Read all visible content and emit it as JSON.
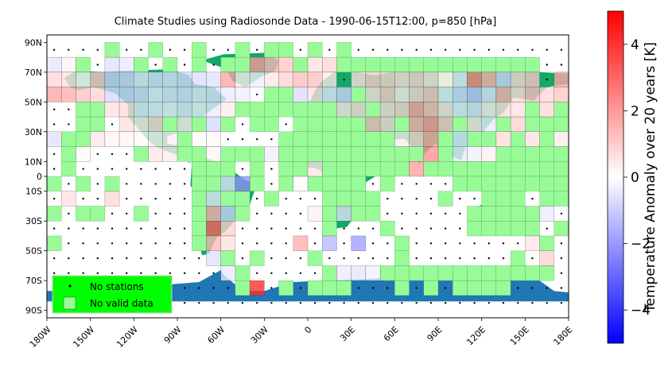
{
  "chart_data": {
    "type": "heatmap",
    "title": "Climate Studies using Radiosonde Data - 1990-06-15T12:00, p=850 [hPa]",
    "x_axis": {
      "range": [
        -180,
        180
      ],
      "ticks": [
        -180,
        -150,
        -120,
        -90,
        -60,
        -30,
        0,
        30,
        60,
        90,
        120,
        150,
        180
      ],
      "tick_labels": [
        "180W",
        "150W",
        "120W",
        "90W",
        "60W",
        "30W",
        "0",
        "30E",
        "60E",
        "90E",
        "120E",
        "150E",
        "180E"
      ]
    },
    "y_axis": {
      "range": [
        -95,
        95
      ],
      "ticks": [
        90,
        70,
        50,
        30,
        10,
        0,
        -10,
        -30,
        -50,
        -70,
        -90
      ],
      "tick_labels": [
        "90N",
        "70N",
        "50N",
        "30N",
        "10N",
        "0",
        "10S",
        "30S",
        "50S",
        "70S",
        "90S"
      ]
    },
    "colorbar": {
      "label": "Temperature Anomaly over 20 years [K]",
      "range": [
        -5,
        5
      ],
      "ticks": [
        -4,
        -2,
        0,
        2,
        4
      ],
      "tick_labels": [
        "−4",
        "−2",
        "0",
        "2",
        "4"
      ],
      "colormap": "bwr"
    },
    "legend": {
      "position": "lower-left",
      "entries": [
        {
          "label": "No stations",
          "marker": "dot"
        },
        {
          "label": "No valid data",
          "marker": "green-square"
        }
      ]
    },
    "grid_cell_deg": 10,
    "anomaly_cells": [
      [
        -175,
        75,
        -0.5
      ],
      [
        -165,
        75,
        0.2
      ],
      [
        -135,
        75,
        -0.6
      ],
      [
        -125,
        75,
        -0.4
      ],
      [
        -175,
        65,
        0.8
      ],
      [
        -165,
        65,
        0.6
      ],
      [
        -155,
        65,
        0.1
      ],
      [
        -145,
        65,
        1.2
      ],
      [
        -135,
        65,
        -1.0
      ],
      [
        -125,
        65,
        -0.9
      ],
      [
        -115,
        65,
        -0.5
      ],
      [
        -105,
        65,
        -0.7
      ],
      [
        -95,
        65,
        -0.6
      ],
      [
        -85,
        65,
        -0.8
      ],
      [
        -75,
        65,
        -0.7
      ],
      [
        -65,
        65,
        -0.6
      ],
      [
        -55,
        65,
        1.8
      ],
      [
        -45,
        65,
        0.3
      ],
      [
        -35,
        65,
        -0.3
      ],
      [
        -25,
        65,
        0.5
      ],
      [
        -175,
        55,
        1.8
      ],
      [
        -165,
        55,
        1.6
      ],
      [
        -155,
        55,
        1.2
      ],
      [
        -145,
        55,
        0.9
      ],
      [
        -135,
        55,
        -0.8
      ],
      [
        -125,
        55,
        -0.9
      ],
      [
        -115,
        55,
        -0.8
      ],
      [
        -105,
        55,
        -0.4
      ],
      [
        -95,
        55,
        -0.6
      ],
      [
        -85,
        55,
        -0.7
      ],
      [
        -75,
        55,
        -0.5
      ],
      [
        -65,
        55,
        -0.6
      ],
      [
        -55,
        55,
        -0.4
      ],
      [
        -45,
        55,
        -0.3
      ],
      [
        -135,
        45,
        0.6
      ],
      [
        -125,
        45,
        0.7
      ],
      [
        -115,
        45,
        -0.5
      ],
      [
        -105,
        45,
        -0.4
      ],
      [
        -95,
        45,
        -0.3
      ],
      [
        -85,
        45,
        -0.5
      ],
      [
        -75,
        45,
        -0.3
      ],
      [
        -65,
        45,
        -0.4
      ],
      [
        -55,
        45,
        0.4
      ],
      [
        -125,
        35,
        0.6
      ],
      [
        -115,
        35,
        0.4
      ],
      [
        -105,
        35,
        0.8
      ],
      [
        -85,
        35,
        0.3
      ],
      [
        -65,
        35,
        -0.8
      ],
      [
        -175,
        25,
        -0.6
      ],
      [
        -145,
        25,
        0.5
      ],
      [
        -135,
        25,
        0.2
      ],
      [
        -125,
        25,
        0.2
      ],
      [
        -115,
        25,
        0.1
      ],
      [
        -105,
        25,
        0.2
      ],
      [
        -95,
        25,
        0.3
      ],
      [
        -75,
        25,
        0.1
      ],
      [
        -65,
        25,
        0.1
      ],
      [
        -155,
        15,
        0.1
      ],
      [
        -105,
        15,
        0.5
      ],
      [
        -95,
        15,
        0.4
      ],
      [
        -65,
        15,
        0.2
      ],
      [
        -55,
        -5,
        -0.5
      ],
      [
        -45,
        -5,
        -2.2
      ],
      [
        -65,
        -15,
        -0.4
      ],
      [
        -5,
        -5,
        0.1
      ],
      [
        -165,
        -15,
        0.6
      ],
      [
        -135,
        -15,
        0.8
      ],
      [
        -65,
        -25,
        1.6
      ],
      [
        -55,
        -25,
        -0.9
      ],
      [
        -65,
        -35,
        3.2
      ],
      [
        -55,
        -35,
        0.9
      ],
      [
        -65,
        -45,
        1.4
      ],
      [
        -55,
        -45,
        0.6
      ],
      [
        -65,
        -55,
        -0.6
      ],
      [
        -55,
        -65,
        -0.4
      ],
      [
        -35,
        -75,
        4.2
      ],
      [
        -35,
        75,
        2.0
      ],
      [
        -25,
        75,
        1.4
      ],
      [
        -15,
        75,
        1.1
      ],
      [
        5,
        75,
        0.6
      ],
      [
        15,
        75,
        0.8
      ],
      [
        -15,
        65,
        0.9
      ],
      [
        -5,
        65,
        1.3
      ],
      [
        5,
        65,
        1.2
      ],
      [
        15,
        65,
        0.4
      ],
      [
        35,
        65,
        0.6
      ],
      [
        45,
        65,
        1.0
      ],
      [
        55,
        65,
        0.9
      ],
      [
        65,
        65,
        0.7
      ],
      [
        75,
        65,
        0.9
      ],
      [
        85,
        65,
        0.6
      ],
      [
        95,
        65,
        0.4
      ],
      [
        105,
        65,
        -0.4
      ],
      [
        115,
        65,
        2.5
      ],
      [
        125,
        65,
        1.6
      ],
      [
        135,
        65,
        -0.9
      ],
      [
        145,
        65,
        0.8
      ],
      [
        155,
        65,
        1.1
      ],
      [
        175,
        65,
        1.7
      ],
      [
        -5,
        55,
        -0.7
      ],
      [
        5,
        55,
        0.6
      ],
      [
        15,
        55,
        -0.5
      ],
      [
        25,
        55,
        -0.9
      ],
      [
        45,
        55,
        0.6
      ],
      [
        55,
        55,
        1.1
      ],
      [
        65,
        55,
        0.4
      ],
      [
        75,
        55,
        0.9
      ],
      [
        85,
        55,
        1.2
      ],
      [
        95,
        55,
        -0.4
      ],
      [
        105,
        55,
        -0.8
      ],
      [
        115,
        55,
        -1.2
      ],
      [
        125,
        55,
        -0.6
      ],
      [
        135,
        55,
        1.6
      ],
      [
        145,
        55,
        0.7
      ],
      [
        155,
        55,
        1.3
      ],
      [
        165,
        55,
        0.8
      ],
      [
        175,
        55,
        1.1
      ],
      [
        25,
        45,
        0.5
      ],
      [
        35,
        45,
        0.7
      ],
      [
        55,
        45,
        0.7
      ],
      [
        65,
        45,
        0.9
      ],
      [
        75,
        45,
        1.9
      ],
      [
        85,
        45,
        1.4
      ],
      [
        95,
        45,
        0.6
      ],
      [
        105,
        45,
        -0.4
      ],
      [
        115,
        45,
        -0.6
      ],
      [
        125,
        45,
        0.4
      ],
      [
        135,
        45,
        0.7
      ],
      [
        145,
        45,
        0.6
      ],
      [
        165,
        45,
        0.8
      ],
      [
        45,
        35,
        1.2
      ],
      [
        55,
        35,
        0.8
      ],
      [
        75,
        35,
        1.6
      ],
      [
        85,
        35,
        2.1
      ],
      [
        95,
        35,
        1.1
      ],
      [
        115,
        35,
        0.5
      ],
      [
        125,
        35,
        -0.4
      ],
      [
        145,
        35,
        0.9
      ],
      [
        65,
        25,
        0.4
      ],
      [
        75,
        25,
        0.9
      ],
      [
        85,
        25,
        1.8
      ],
      [
        105,
        25,
        -0.5
      ],
      [
        135,
        25,
        0.7
      ],
      [
        155,
        25,
        0.6
      ],
      [
        175,
        25,
        0.4
      ],
      [
        -25,
        15,
        -0.3
      ],
      [
        85,
        15,
        2.2
      ],
      [
        105,
        15,
        -0.4
      ],
      [
        115,
        15,
        -0.3
      ],
      [
        125,
        15,
        0.3
      ],
      [
        5,
        5,
        0.5
      ],
      [
        75,
        5,
        1.9
      ],
      [
        5,
        -25,
        0.3
      ],
      [
        25,
        -25,
        -0.5
      ],
      [
        165,
        -25,
        -0.4
      ],
      [
        -5,
        -45,
        1.6
      ],
      [
        15,
        -45,
        -1.4
      ],
      [
        35,
        -45,
        -1.9
      ],
      [
        155,
        -45,
        0.5
      ],
      [
        165,
        -55,
        0.9
      ],
      [
        25,
        -65,
        -0.4
      ],
      [
        35,
        -65,
        -0.5
      ],
      [
        45,
        -65,
        -0.3
      ]
    ],
    "no_valid_data_cells": [
      [
        -135,
        85
      ],
      [
        -105,
        85
      ],
      [
        -75,
        85
      ],
      [
        -45,
        85
      ],
      [
        -25,
        85
      ],
      [
        -15,
        85
      ],
      [
        5,
        85
      ],
      [
        25,
        85
      ],
      [
        -155,
        75
      ],
      [
        -115,
        75
      ],
      [
        -95,
        75
      ],
      [
        -75,
        75
      ],
      [
        -55,
        75
      ],
      [
        -45,
        75
      ],
      [
        25,
        75
      ],
      [
        35,
        75
      ],
      [
        45,
        75
      ],
      [
        55,
        75
      ],
      [
        65,
        75
      ],
      [
        75,
        75
      ],
      [
        85,
        75
      ],
      [
        95,
        75
      ],
      [
        105,
        75
      ],
      [
        115,
        75
      ],
      [
        125,
        75
      ],
      [
        135,
        75
      ],
      [
        145,
        75
      ],
      [
        155,
        75
      ],
      [
        -5,
        75
      ],
      [
        -15,
        55
      ],
      [
        -25,
        55
      ],
      [
        35,
        55
      ],
      [
        95,
        65
      ],
      [
        -155,
        45
      ],
      [
        -145,
        45
      ],
      [
        -45,
        45
      ],
      [
        -35,
        45
      ],
      [
        -25,
        45
      ],
      [
        -15,
        45
      ],
      [
        -5,
        45
      ],
      [
        5,
        45
      ],
      [
        15,
        45
      ],
      [
        45,
        45
      ],
      [
        155,
        45
      ],
      [
        175,
        45
      ],
      [
        -155,
        35
      ],
      [
        -145,
        35
      ],
      [
        -95,
        35
      ],
      [
        -75,
        35
      ],
      [
        -55,
        35
      ],
      [
        -35,
        35
      ],
      [
        -25,
        35
      ],
      [
        -5,
        35
      ],
      [
        5,
        35
      ],
      [
        15,
        35
      ],
      [
        25,
        35
      ],
      [
        35,
        35
      ],
      [
        65,
        35
      ],
      [
        105,
        35
      ],
      [
        135,
        35
      ],
      [
        155,
        35
      ],
      [
        165,
        35
      ],
      [
        175,
        35
      ],
      [
        -165,
        25
      ],
      [
        -155,
        25
      ],
      [
        -85,
        25
      ],
      [
        -15,
        25
      ],
      [
        -5,
        25
      ],
      [
        5,
        25
      ],
      [
        15,
        25
      ],
      [
        25,
        25
      ],
      [
        35,
        25
      ],
      [
        45,
        25
      ],
      [
        55,
        25
      ],
      [
        95,
        25
      ],
      [
        115,
        25
      ],
      [
        125,
        25
      ],
      [
        145,
        25
      ],
      [
        165,
        25
      ],
      [
        -165,
        15
      ],
      [
        -115,
        15
      ],
      [
        -85,
        15
      ],
      [
        -75,
        15
      ],
      [
        -55,
        15
      ],
      [
        -45,
        15
      ],
      [
        -35,
        15
      ],
      [
        -15,
        15
      ],
      [
        -5,
        15
      ],
      [
        5,
        15
      ],
      [
        15,
        15
      ],
      [
        25,
        15
      ],
      [
        35,
        15
      ],
      [
        45,
        15
      ],
      [
        55,
        15
      ],
      [
        65,
        15
      ],
      [
        75,
        15
      ],
      [
        95,
        15
      ],
      [
        135,
        15
      ],
      [
        145,
        15
      ],
      [
        155,
        15
      ],
      [
        165,
        15
      ],
      [
        175,
        15
      ],
      [
        -165,
        5
      ],
      [
        -75,
        5
      ],
      [
        -65,
        5
      ],
      [
        -55,
        5
      ],
      [
        -35,
        5
      ],
      [
        -15,
        5
      ],
      [
        -5,
        5
      ],
      [
        15,
        5
      ],
      [
        25,
        5
      ],
      [
        35,
        5
      ],
      [
        45,
        5
      ],
      [
        55,
        5
      ],
      [
        65,
        5
      ],
      [
        85,
        5
      ],
      [
        95,
        5
      ],
      [
        105,
        5
      ],
      [
        115,
        5
      ],
      [
        125,
        5
      ],
      [
        135,
        5
      ],
      [
        145,
        5
      ],
      [
        155,
        5
      ],
      [
        165,
        5
      ],
      [
        175,
        5
      ],
      [
        -175,
        -5
      ],
      [
        -155,
        -5
      ],
      [
        -135,
        -5
      ],
      [
        -75,
        -5
      ],
      [
        -65,
        -5
      ],
      [
        -35,
        -5
      ],
      [
        -15,
        -5
      ],
      [
        5,
        -5
      ],
      [
        15,
        -5
      ],
      [
        25,
        -5
      ],
      [
        35,
        -5
      ],
      [
        55,
        -5
      ],
      [
        105,
        -5
      ],
      [
        115,
        -5
      ],
      [
        125,
        -5
      ],
      [
        135,
        -5
      ],
      [
        145,
        -5
      ],
      [
        155,
        -5
      ],
      [
        165,
        -5
      ],
      [
        175,
        -5
      ],
      [
        -75,
        -15
      ],
      [
        -55,
        -15
      ],
      [
        -45,
        -15
      ],
      [
        -25,
        -15
      ],
      [
        15,
        -15
      ],
      [
        25,
        -15
      ],
      [
        35,
        -15
      ],
      [
        45,
        -15
      ],
      [
        95,
        -15
      ],
      [
        125,
        -15
      ],
      [
        135,
        -15
      ],
      [
        145,
        -15
      ],
      [
        165,
        -15
      ],
      [
        175,
        -15
      ],
      [
        -175,
        -25
      ],
      [
        -155,
        -25
      ],
      [
        -145,
        -25
      ],
      [
        -115,
        -25
      ],
      [
        -75,
        -25
      ],
      [
        -45,
        -25
      ],
      [
        15,
        -25
      ],
      [
        35,
        -25
      ],
      [
        45,
        -25
      ],
      [
        115,
        -25
      ],
      [
        125,
        -25
      ],
      [
        135,
        -25
      ],
      [
        145,
        -25
      ],
      [
        155,
        -25
      ],
      [
        -75,
        -35
      ],
      [
        15,
        -35
      ],
      [
        55,
        -35
      ],
      [
        115,
        -35
      ],
      [
        125,
        -35
      ],
      [
        135,
        -35
      ],
      [
        145,
        -35
      ],
      [
        175,
        -35
      ],
      [
        -175,
        -45
      ],
      [
        -75,
        -45
      ],
      [
        65,
        -45
      ],
      [
        155,
        -35
      ],
      [
        165,
        -45
      ],
      [
        -55,
        -55
      ],
      [
        -35,
        -55
      ],
      [
        5,
        -55
      ],
      [
        65,
        -55
      ],
      [
        145,
        -55
      ],
      [
        -45,
        -65
      ],
      [
        15,
        -65
      ],
      [
        55,
        -65
      ],
      [
        65,
        -65
      ],
      [
        75,
        -65
      ],
      [
        85,
        -65
      ],
      [
        95,
        -65
      ],
      [
        105,
        -65
      ],
      [
        115,
        -65
      ],
      [
        125,
        -65
      ],
      [
        135,
        -65
      ],
      [
        145,
        -65
      ],
      [
        155,
        -65
      ],
      [
        165,
        -65
      ],
      [
        -45,
        -75
      ],
      [
        -15,
        -75
      ],
      [
        5,
        -75
      ],
      [
        15,
        -75
      ],
      [
        25,
        -75
      ],
      [
        65,
        -75
      ],
      [
        85,
        -75
      ],
      [
        105,
        -75
      ],
      [
        115,
        -75
      ],
      [
        125,
        -75
      ],
      [
        135,
        -75
      ]
    ]
  },
  "colors": {
    "ocean": "#ffffff",
    "land": "#12a868",
    "antarctica": "#1f77b4",
    "no_valid_data": "#98fb98",
    "legend_bg": "#00ff00",
    "dot": "#000000"
  }
}
